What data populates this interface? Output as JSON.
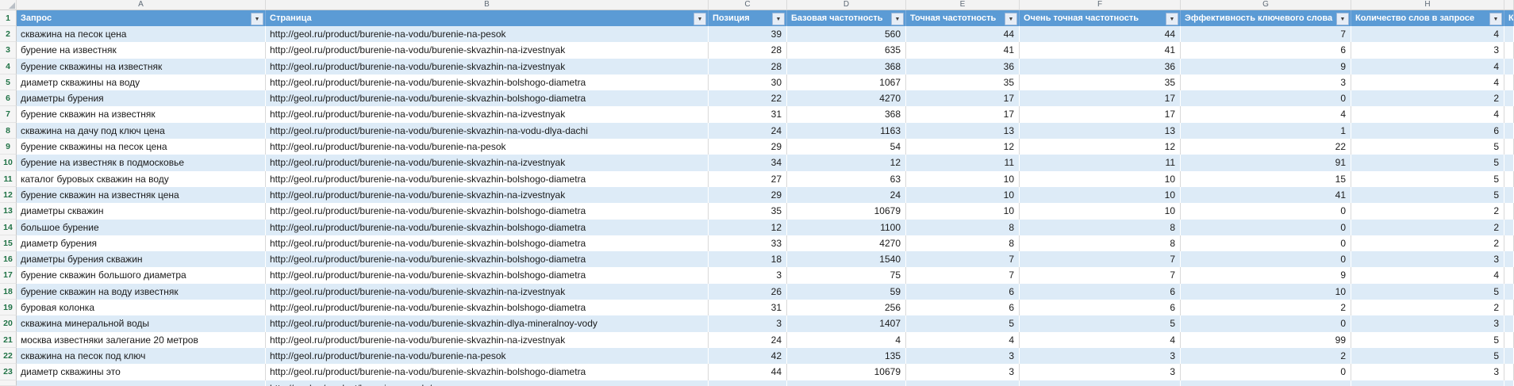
{
  "app": "spreadsheet-table-view",
  "colors": {
    "header-bg": "#5b9bd5",
    "band-bg": "#ddebf7",
    "row-number-green": "#217346"
  },
  "icons": {
    "filter_dropdown": "▼",
    "corner_triangle": "select-all-triangle"
  },
  "sheet": {
    "column_letters": [
      "A",
      "B",
      "C",
      "D",
      "E",
      "F",
      "G",
      "H"
    ],
    "partial_column_letter": "",
    "header_row_number": "1"
  },
  "table": {
    "headers": [
      {
        "key": "query",
        "label": "Запрос"
      },
      {
        "key": "page",
        "label": "Страница"
      },
      {
        "key": "position",
        "label": "Позиция"
      },
      {
        "key": "base-frequency",
        "label": "Базовая частотность"
      },
      {
        "key": "exact-frequency",
        "label": "Точная частотность"
      },
      {
        "key": "very-exact-frequency",
        "label": "Очень точная частотность"
      },
      {
        "key": "keyword-effectiveness",
        "label": "Эффективность ключевого слова"
      },
      {
        "key": "word-count",
        "label": "Количество слов в запросе"
      }
    ],
    "partial_header_label": "К",
    "rows": [
      {
        "n": "2",
        "cells": [
          "скважина на песок цена",
          "http://geol.ru/product/burenie-na-vodu/burenie-na-pesok",
          "39",
          "560",
          "44",
          "44",
          "7",
          "4"
        ]
      },
      {
        "n": "3",
        "cells": [
          "бурение на известняк",
          "http://geol.ru/product/burenie-na-vodu/burenie-skvazhin-na-izvestnyak",
          "28",
          "635",
          "41",
          "41",
          "6",
          "3"
        ]
      },
      {
        "n": "4",
        "cells": [
          "бурение скважины на известняк",
          "http://geol.ru/product/burenie-na-vodu/burenie-skvazhin-na-izvestnyak",
          "28",
          "368",
          "36",
          "36",
          "9",
          "4"
        ]
      },
      {
        "n": "5",
        "cells": [
          "диаметр скважины на воду",
          "http://geol.ru/product/burenie-na-vodu/burenie-skvazhin-bolshogo-diametra",
          "30",
          "1067",
          "35",
          "35",
          "3",
          "4"
        ]
      },
      {
        "n": "6",
        "cells": [
          "диаметры бурения",
          "http://geol.ru/product/burenie-na-vodu/burenie-skvazhin-bolshogo-diametra",
          "22",
          "4270",
          "17",
          "17",
          "0",
          "2"
        ]
      },
      {
        "n": "7",
        "cells": [
          "бурение скважин на известняк",
          "http://geol.ru/product/burenie-na-vodu/burenie-skvazhin-na-izvestnyak",
          "31",
          "368",
          "17",
          "17",
          "4",
          "4"
        ]
      },
      {
        "n": "8",
        "cells": [
          "скважина на дачу под ключ цена",
          "http://geol.ru/product/burenie-na-vodu/burenie-skvazhin-na-vodu-dlya-dachi",
          "24",
          "1163",
          "13",
          "13",
          "1",
          "6"
        ]
      },
      {
        "n": "9",
        "cells": [
          "бурение скважины на песок цена",
          "http://geol.ru/product/burenie-na-vodu/burenie-na-pesok",
          "29",
          "54",
          "12",
          "12",
          "22",
          "5"
        ]
      },
      {
        "n": "10",
        "cells": [
          "бурение на известняк в подмосковье",
          "http://geol.ru/product/burenie-na-vodu/burenie-skvazhin-na-izvestnyak",
          "34",
          "12",
          "11",
          "11",
          "91",
          "5"
        ]
      },
      {
        "n": "11",
        "cells": [
          "каталог буровых скважин на воду",
          "http://geol.ru/product/burenie-na-vodu/burenie-skvazhin-bolshogo-diametra",
          "27",
          "63",
          "10",
          "10",
          "15",
          "5"
        ]
      },
      {
        "n": "12",
        "cells": [
          "бурение скважин на известняк цена",
          "http://geol.ru/product/burenie-na-vodu/burenie-skvazhin-na-izvestnyak",
          "29",
          "24",
          "10",
          "10",
          "41",
          "5"
        ]
      },
      {
        "n": "13",
        "cells": [
          "диаметры скважин",
          "http://geol.ru/product/burenie-na-vodu/burenie-skvazhin-bolshogo-diametra",
          "35",
          "10679",
          "10",
          "10",
          "0",
          "2"
        ]
      },
      {
        "n": "14",
        "cells": [
          "большое бурение",
          "http://geol.ru/product/burenie-na-vodu/burenie-skvazhin-bolshogo-diametra",
          "12",
          "1100",
          "8",
          "8",
          "0",
          "2"
        ]
      },
      {
        "n": "15",
        "cells": [
          "диаметр бурения",
          "http://geol.ru/product/burenie-na-vodu/burenie-skvazhin-bolshogo-diametra",
          "33",
          "4270",
          "8",
          "8",
          "0",
          "2"
        ]
      },
      {
        "n": "16",
        "cells": [
          "диаметры бурения скважин",
          "http://geol.ru/product/burenie-na-vodu/burenie-skvazhin-bolshogo-diametra",
          "18",
          "1540",
          "7",
          "7",
          "0",
          "3"
        ]
      },
      {
        "n": "17",
        "cells": [
          "бурение скважин большого диаметра",
          "http://geol.ru/product/burenie-na-vodu/burenie-skvazhin-bolshogo-diametra",
          "3",
          "75",
          "7",
          "7",
          "9",
          "4"
        ]
      },
      {
        "n": "18",
        "cells": [
          "бурение скважин на воду известняк",
          "http://geol.ru/product/burenie-na-vodu/burenie-skvazhin-na-izvestnyak",
          "26",
          "59",
          "6",
          "6",
          "10",
          "5"
        ]
      },
      {
        "n": "19",
        "cells": [
          "буровая колонка",
          "http://geol.ru/product/burenie-na-vodu/burenie-skvazhin-bolshogo-diametra",
          "31",
          "256",
          "6",
          "6",
          "2",
          "2"
        ]
      },
      {
        "n": "20",
        "cells": [
          "скважина минеральной воды",
          "http://geol.ru/product/burenie-na-vodu/burenie-skvazhin-dlya-mineralnoy-vody",
          "3",
          "1407",
          "5",
          "5",
          "0",
          "3"
        ]
      },
      {
        "n": "21",
        "cells": [
          "москва известняки залегание 20 метров",
          "http://geol.ru/product/burenie-na-vodu/burenie-skvazhin-na-izvestnyak",
          "24",
          "4",
          "4",
          "4",
          "99",
          "5"
        ]
      },
      {
        "n": "22",
        "cells": [
          "скважина на песок под ключ",
          "http://geol.ru/product/burenie-na-vodu/burenie-na-pesok",
          "42",
          "135",
          "3",
          "3",
          "2",
          "5"
        ]
      },
      {
        "n": "23",
        "cells": [
          "диаметр скважины это",
          "http://geol.ru/product/burenie-na-vodu/burenie-skvazhin-bolshogo-diametra",
          "44",
          "10679",
          "3",
          "3",
          "0",
          "3"
        ]
      }
    ],
    "partial_row": {
      "n": "24",
      "cells": [
        "",
        "http://geol.ru/product/burenie-na-vodu/",
        "",
        "",
        "",
        "",
        "",
        ""
      ]
    }
  }
}
